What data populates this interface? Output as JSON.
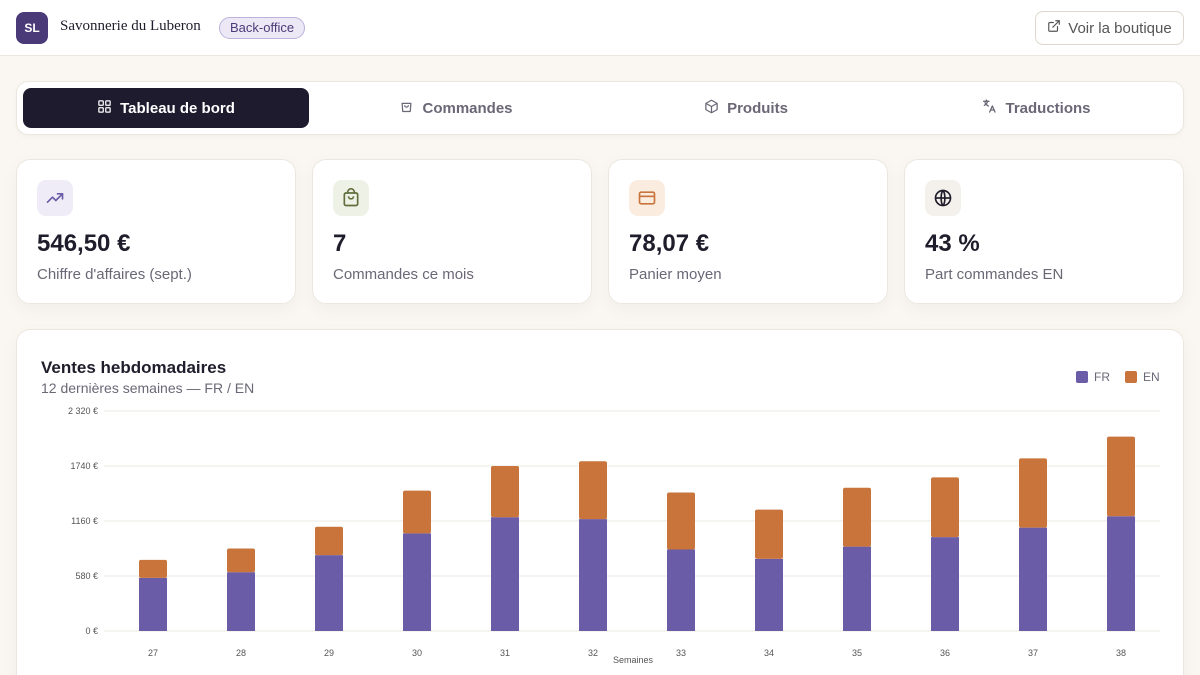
{
  "header": {
    "logo_initials": "SL",
    "brand_name": "Savonnerie du Luberon",
    "badge": "Back-office",
    "shop_button": "Voir la boutique"
  },
  "tabs": [
    {
      "label": "Tableau de bord",
      "icon": "grid-icon",
      "active": true
    },
    {
      "label": "Commandes",
      "icon": "bag-icon",
      "active": false
    },
    {
      "label": "Produits",
      "icon": "box-icon",
      "active": false
    },
    {
      "label": "Traductions",
      "icon": "translate-icon",
      "active": false
    }
  ],
  "stats": [
    {
      "value": "546,50 €",
      "label": "Chiffre d'affaires (sept.)",
      "icon": "trending-up-icon",
      "color": "#6b5ca8",
      "bg": "#efecf7"
    },
    {
      "value": "7",
      "label": "Commandes ce mois",
      "icon": "shopping-bag-icon",
      "color": "#5f6f3c",
      "bg": "#eef1e6"
    },
    {
      "value": "78,07 €",
      "label": "Panier moyen",
      "icon": "credit-card-icon",
      "color": "#c8743b",
      "bg": "#fbece0"
    },
    {
      "value": "43 %",
      "label": "Part commandes EN",
      "icon": "globe-icon",
      "color": "#1f1d2b",
      "bg": "#f4f1ec"
    }
  ],
  "chart": {
    "title": "Ventes hebdomadaires",
    "subtitle": "12 dernières semaines — FR / EN"
  },
  "chart_data": {
    "type": "bar",
    "stacked": true,
    "categories": [
      "27",
      "28",
      "29",
      "30",
      "31",
      "32",
      "33",
      "34",
      "35",
      "36",
      "37",
      "38"
    ],
    "series": [
      {
        "name": "FR",
        "color": "#6b5ca8",
        "values": [
          560,
          620,
          800,
          1030,
          1200,
          1180,
          860,
          760,
          890,
          990,
          1090,
          1210
        ]
      },
      {
        "name": "EN",
        "color": "#c8743b",
        "values": [
          190,
          250,
          300,
          450,
          540,
          610,
          600,
          520,
          620,
          630,
          730,
          840
        ]
      }
    ],
    "ylim": [
      0,
      2320
    ],
    "yticks": [
      0,
      580,
      1160,
      1740,
      2320
    ],
    "ytick_labels": [
      "0 €",
      "580 €",
      "1160 €",
      "1740 €",
      "2 320 €"
    ],
    "xlabel": "Semaines",
    "ylabel": "",
    "legend_position": "top-right",
    "grid": true
  }
}
